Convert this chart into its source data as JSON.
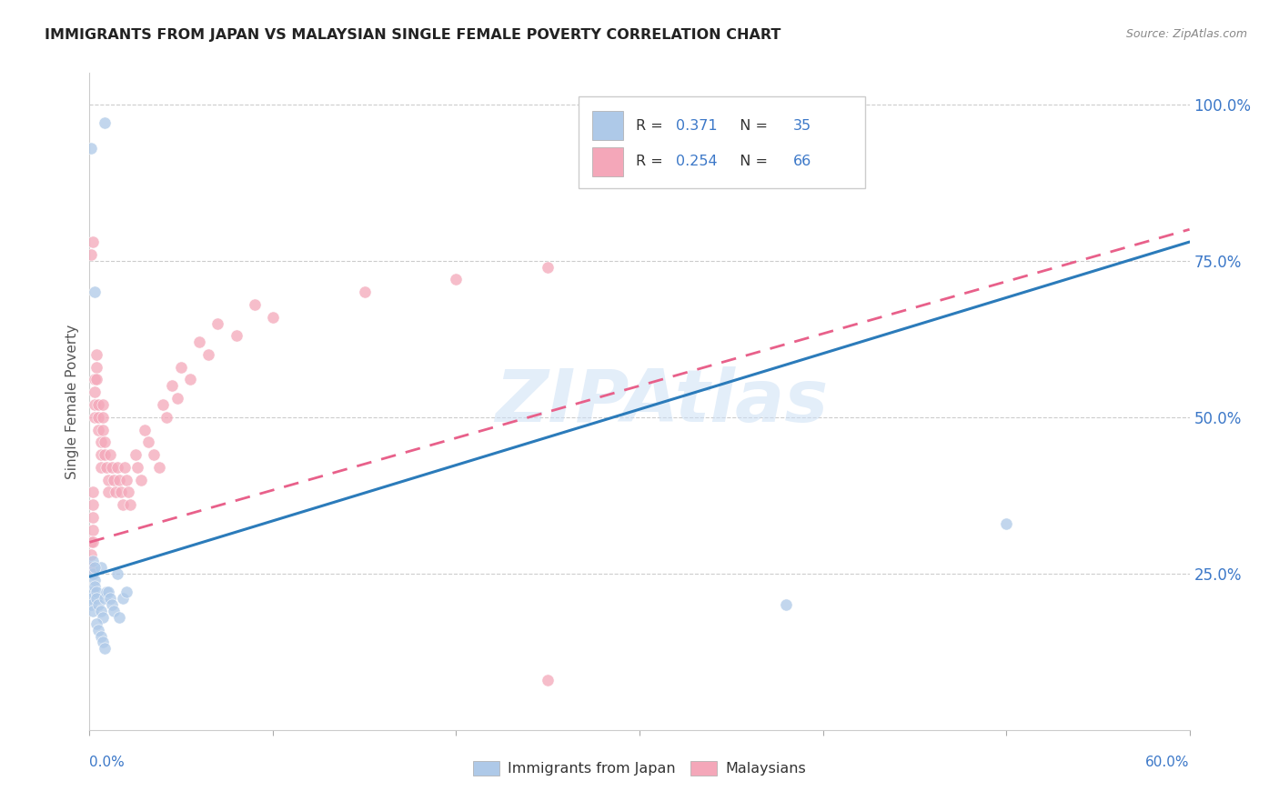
{
  "title": "IMMIGRANTS FROM JAPAN VS MALAYSIAN SINGLE FEMALE POVERTY CORRELATION CHART",
  "source": "Source: ZipAtlas.com",
  "ylabel": "Single Female Poverty",
  "yticks": [
    0.0,
    0.25,
    0.5,
    0.75,
    1.0
  ],
  "ytick_labels": [
    "",
    "25.0%",
    "50.0%",
    "75.0%",
    "100.0%"
  ],
  "xlim": [
    0.0,
    0.6
  ],
  "ylim": [
    0.0,
    1.05
  ],
  "watermark": "ZIPAtlas",
  "blue_scatter_color": "#aec9e8",
  "pink_scatter_color": "#f4a7b9",
  "blue_line_color": "#2b7bba",
  "pink_line_color": "#e8608a",
  "text_color": "#3c78c8",
  "legend_r1_val": "0.371",
  "legend_n1_val": "35",
  "legend_r2_val": "0.254",
  "legend_n2_val": "66",
  "japan_x": [
    0.001,
    0.003,
    0.008,
    0.002,
    0.001,
    0.001,
    0.002,
    0.002,
    0.003,
    0.003,
    0.004,
    0.004,
    0.005,
    0.006,
    0.006,
    0.007,
    0.008,
    0.009,
    0.01,
    0.011,
    0.012,
    0.013,
    0.015,
    0.016,
    0.018,
    0.02,
    0.002,
    0.003,
    0.004,
    0.005,
    0.006,
    0.007,
    0.008,
    0.38,
    0.5
  ],
  "japan_y": [
    0.93,
    0.7,
    0.97,
    0.22,
    0.21,
    0.2,
    0.19,
    0.25,
    0.24,
    0.23,
    0.22,
    0.21,
    0.2,
    0.19,
    0.26,
    0.18,
    0.21,
    0.22,
    0.22,
    0.21,
    0.2,
    0.19,
    0.25,
    0.18,
    0.21,
    0.22,
    0.27,
    0.26,
    0.17,
    0.16,
    0.15,
    0.14,
    0.13,
    0.2,
    0.33
  ],
  "malaysia_x": [
    0.001,
    0.001,
    0.001,
    0.002,
    0.002,
    0.002,
    0.002,
    0.002,
    0.003,
    0.003,
    0.003,
    0.003,
    0.004,
    0.004,
    0.004,
    0.005,
    0.005,
    0.005,
    0.006,
    0.006,
    0.006,
    0.007,
    0.007,
    0.007,
    0.008,
    0.008,
    0.009,
    0.01,
    0.01,
    0.011,
    0.012,
    0.013,
    0.014,
    0.015,
    0.016,
    0.017,
    0.018,
    0.019,
    0.02,
    0.021,
    0.022,
    0.025,
    0.026,
    0.028,
    0.03,
    0.032,
    0.035,
    0.038,
    0.04,
    0.042,
    0.045,
    0.048,
    0.05,
    0.055,
    0.06,
    0.065,
    0.07,
    0.08,
    0.09,
    0.1,
    0.15,
    0.2,
    0.25,
    0.001,
    0.002,
    0.25
  ],
  "malaysia_y": [
    0.3,
    0.28,
    0.26,
    0.38,
    0.36,
    0.34,
    0.32,
    0.3,
    0.56,
    0.54,
    0.52,
    0.5,
    0.6,
    0.58,
    0.56,
    0.52,
    0.5,
    0.48,
    0.46,
    0.44,
    0.42,
    0.52,
    0.5,
    0.48,
    0.46,
    0.44,
    0.42,
    0.4,
    0.38,
    0.44,
    0.42,
    0.4,
    0.38,
    0.42,
    0.4,
    0.38,
    0.36,
    0.42,
    0.4,
    0.38,
    0.36,
    0.44,
    0.42,
    0.4,
    0.48,
    0.46,
    0.44,
    0.42,
    0.52,
    0.5,
    0.55,
    0.53,
    0.58,
    0.56,
    0.62,
    0.6,
    0.65,
    0.63,
    0.68,
    0.66,
    0.7,
    0.72,
    0.74,
    0.76,
    0.78,
    0.08
  ],
  "blue_line_x0": 0.0,
  "blue_line_y0": 0.245,
  "blue_line_x1": 0.6,
  "blue_line_y1": 0.78,
  "pink_line_x0": 0.0,
  "pink_line_y0": 0.3,
  "pink_line_x1": 0.6,
  "pink_line_y1": 0.8
}
